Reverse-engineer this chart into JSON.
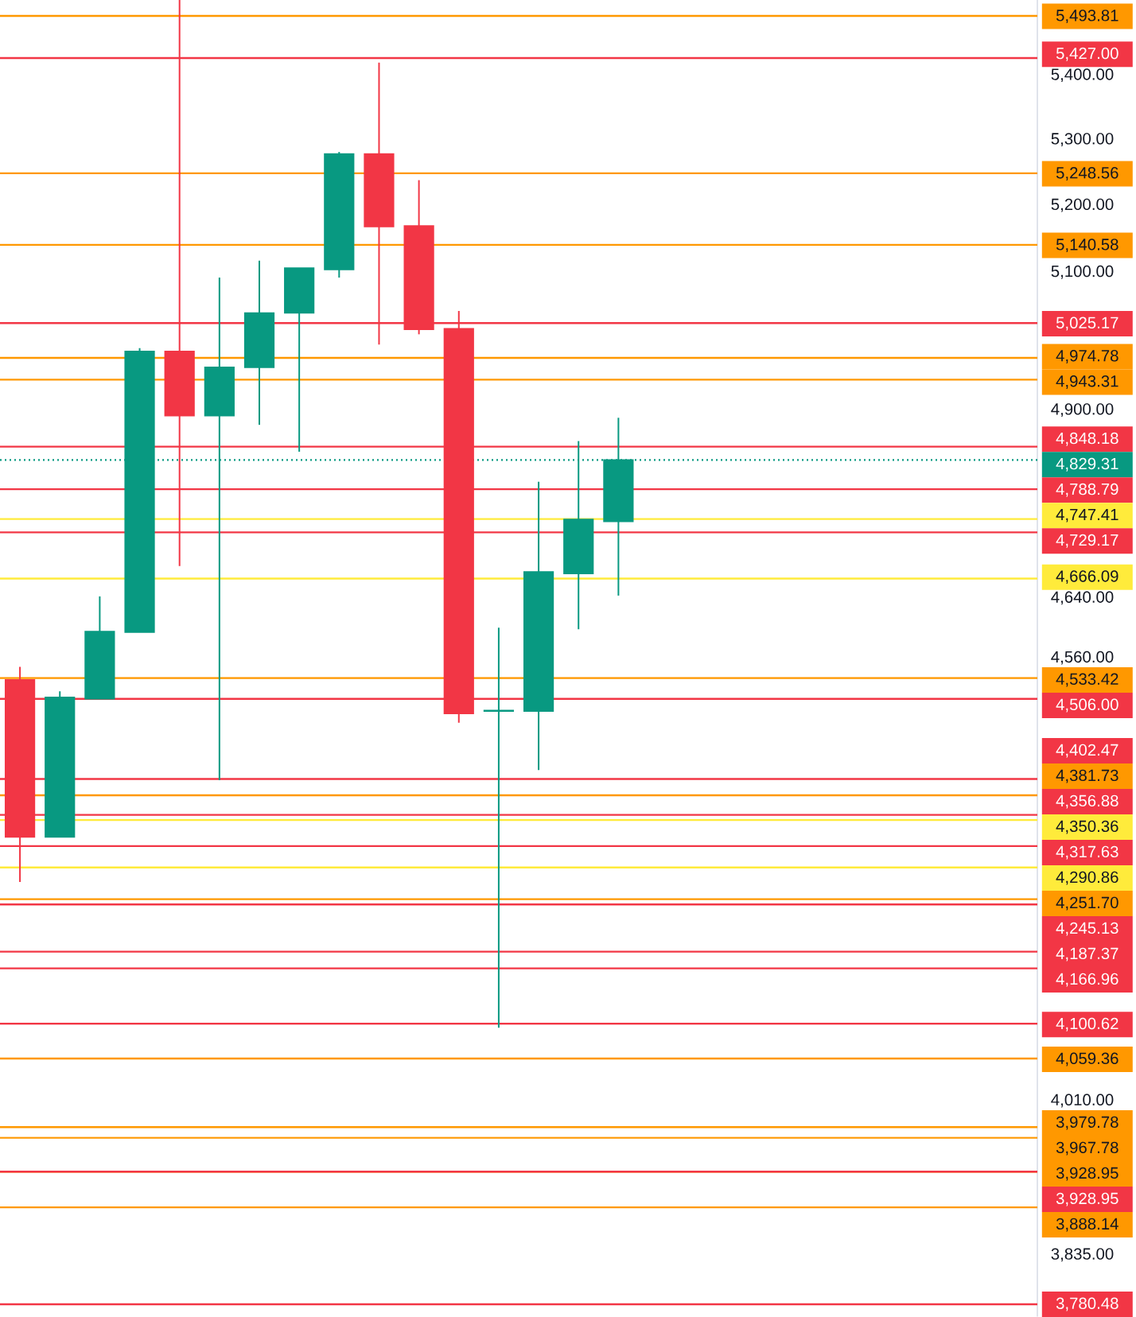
{
  "chart_data": {
    "type": "candlestick",
    "categories": [
      null,
      null,
      null,
      null,
      null,
      null,
      null,
      null,
      null,
      null,
      null,
      null,
      null,
      null,
      null,
      null,
      null,
      null,
      null,
      null,
      null,
      null,
      null,
      null,
      null,
      null
    ],
    "ohlc": [
      [
        4531,
        4548,
        4273,
        4329
      ],
      [
        4329,
        4516,
        4329,
        4508
      ],
      [
        4506,
        4642,
        4506,
        4595
      ],
      [
        4594,
        4989,
        4594,
        4984
      ],
      [
        4984,
        5520,
        4683,
        4892
      ],
      [
        4892,
        5092,
        4401,
        4961
      ],
      [
        4961,
        5117,
        4879,
        5040
      ],
      [
        5040,
        5106,
        4841,
        5106
      ],
      [
        5104,
        5281,
        5092,
        5278
      ],
      [
        5278,
        5420,
        4994,
        5168
      ],
      [
        5169,
        5238,
        5009,
        5016
      ],
      [
        5017,
        5043,
        4475,
        4487
      ],
      [
        4490,
        4600,
        4096,
        4491
      ],
      [
        4490,
        4799,
        4414,
        4675
      ],
      [
        4673,
        4856,
        4598,
        4747
      ],
      [
        4744,
        4889,
        4643,
        4829.31
      ],
      null,
      null,
      null,
      null,
      null,
      null,
      null,
      null,
      null,
      null
    ],
    "colors": [
      "#f23645",
      "#089981",
      "#089981",
      "#089981",
      "#f23645",
      "#089981",
      "#089981",
      "#089981",
      "#089981",
      "#f23645",
      "#f23645",
      "#f23645",
      "#089981",
      "#089981",
      "#089981",
      "#089981",
      null,
      null,
      null,
      null,
      null,
      null,
      null,
      null,
      null,
      null
    ],
    "log": "y",
    "ylim": [
      3767,
      5520
    ],
    "yticks": [
      {
        "value": 5400,
        "label": "5,400.00"
      },
      {
        "value": 5300,
        "label": "5,300.00"
      },
      {
        "value": 5200,
        "label": "5,200.00"
      },
      {
        "value": 5100,
        "label": "5,100.00"
      },
      {
        "value": 4900,
        "label": "4,900.00"
      },
      {
        "value": 4640,
        "label": "4,640.00"
      },
      {
        "value": 4560,
        "label": "4,560.00"
      },
      {
        "value": 4010,
        "label": "4,010.00"
      },
      {
        "value": 3835,
        "label": "3,835.00"
      }
    ],
    "tick_labels": "y",
    "ref_lines": [
      {
        "axis": "y",
        "value": 5493.81,
        "label": "5,493.81",
        "color": "#ff9800"
      },
      {
        "axis": "y",
        "value": 5427.0,
        "label": "5,427.00",
        "color": "#f23645"
      },
      {
        "axis": "y",
        "value": 5248.56,
        "label": "5,248.56",
        "color": "#ff9800"
      },
      {
        "axis": "y",
        "value": 5140.58,
        "label": "5,140.58",
        "color": "#ff9800"
      },
      {
        "axis": "y",
        "value": 5025.17,
        "label": "5,025.17",
        "color": "#f23645"
      },
      {
        "axis": "y",
        "value": 4974.78,
        "label": "4,974.78",
        "color": "#ff9800"
      },
      {
        "axis": "y",
        "value": 4943.31,
        "label": "4,943.31",
        "color": "#ff9800"
      },
      {
        "axis": "y",
        "value": 4848.18,
        "label": "4,848.18",
        "color": "#f23645"
      },
      {
        "axis": "y",
        "value": 4829.31,
        "label": "4,829.31",
        "color": "#089981",
        "line_style": "dotted"
      },
      {
        "axis": "y",
        "value": 4788.79,
        "label": "4,788.79",
        "color": "#f23645"
      },
      {
        "axis": "y",
        "value": 4747.41,
        "label": "4,747.41",
        "color": "#ffeb3b"
      },
      {
        "axis": "y",
        "value": 4729.17,
        "label": "4,729.17",
        "color": "#f23645"
      },
      {
        "axis": "y",
        "value": 4666.09,
        "label": "4,666.09",
        "color": "#ffeb3b"
      },
      {
        "axis": "y",
        "value": 4533.42,
        "label": "4,533.42",
        "color": "#ff9800"
      },
      {
        "axis": "y",
        "value": 4506.0,
        "label": "4,506.00",
        "color": "#f23645"
      },
      {
        "axis": "y",
        "value": 4402.47,
        "label": "4,402.47",
        "color": "#f23645"
      },
      {
        "axis": "y",
        "value": 4381.73,
        "label": "4,381.73",
        "color": "#ff9800"
      },
      {
        "axis": "y",
        "value": 4356.88,
        "label": "4,356.88",
        "color": "#f23645"
      },
      {
        "axis": "y",
        "value": 4350.36,
        "label": "4,350.36",
        "color": "#ffeb3b"
      },
      {
        "axis": "y",
        "value": 4317.63,
        "label": "4,317.63",
        "color": "#f23645"
      },
      {
        "axis": "y",
        "value": 4290.86,
        "label": "4,290.86",
        "color": "#ffeb3b"
      },
      {
        "axis": "y",
        "value": 4251.7,
        "label": "4,251.70",
        "color": "#ff9800"
      },
      {
        "axis": "y",
        "value": 4245.13,
        "label": "4,245.13",
        "color": "#f23645"
      },
      {
        "axis": "y",
        "value": 4187.37,
        "label": "4,187.37",
        "color": "#f23645"
      },
      {
        "axis": "y",
        "value": 4166.96,
        "label": "4,166.96",
        "color": "#f23645"
      },
      {
        "axis": "y",
        "value": 4100.62,
        "label": "4,100.62",
        "color": "#f23645"
      },
      {
        "axis": "y",
        "value": 4059.36,
        "label": "4,059.36",
        "color": "#ff9800"
      },
      {
        "axis": "y",
        "value": 3979.78,
        "label": "3,979.78",
        "color": "#ff9800"
      },
      {
        "axis": "y",
        "value": 3967.78,
        "label": "3,967.78",
        "color": "#ff9800"
      },
      {
        "axis": "y",
        "value": 3928.95,
        "label": "3,928.95",
        "color": "#ff9800"
      },
      {
        "axis": "y",
        "value": 3928.95,
        "label": "3,928.95",
        "color": "#f23645"
      },
      {
        "axis": "y",
        "value": 3888.14,
        "label": "3,888.14",
        "color": "#ff9800"
      },
      {
        "axis": "y",
        "value": 3780.48,
        "label": "3,780.48",
        "color": "#f23645"
      }
    ]
  }
}
